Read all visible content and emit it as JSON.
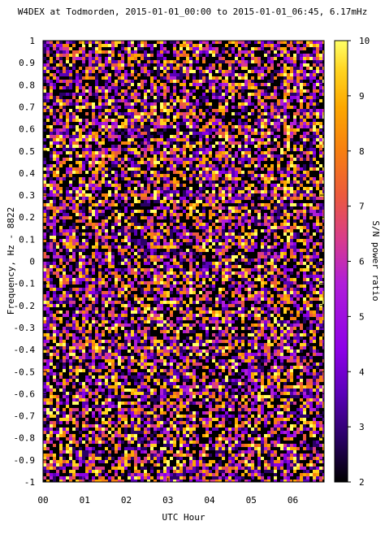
{
  "chart_data": {
    "type": "heatmap",
    "title": "W4DEX at Todmorden, 2015-01-01_00:00 to 2015-01-01_06:45, 6.17mHz",
    "xlabel": "UTC Hour",
    "ylabel": "Frequency, Hz - 8822",
    "colorbar_label": "S/N power ratio",
    "xlim": [
      0,
      6.75
    ],
    "ylim": [
      -1,
      1
    ],
    "clim": [
      2,
      10
    ],
    "x_ticks": [
      0,
      1,
      2,
      3,
      4,
      5,
      6
    ],
    "x_tick_labels": [
      "00",
      "01",
      "02",
      "03",
      "04",
      "05",
      "06"
    ],
    "y_ticks": [
      1,
      0.9,
      0.8,
      0.7,
      0.6,
      0.5,
      0.4,
      0.3,
      0.2,
      0.1,
      0,
      -0.1,
      -0.2,
      -0.3,
      -0.4,
      -0.5,
      -0.6,
      -0.7,
      -0.8,
      -0.9,
      -1
    ],
    "y_tick_labels": [
      "1",
      "0.9",
      "0.8",
      "0.7",
      "0.6",
      "0.5",
      "0.4",
      "0.3",
      "0.2",
      "0.1",
      "0",
      "-0.1",
      "-0.2",
      "-0.3",
      "-0.4",
      "-0.5",
      "-0.6",
      "-0.7",
      "-0.8",
      "-0.9",
      "-1"
    ],
    "colorbar_ticks": [
      10,
      9,
      8,
      7,
      6,
      5,
      4,
      3,
      2
    ],
    "colorbar_tick_labels": [
      "10",
      "9",
      "8",
      "7",
      "6",
      "5",
      "4",
      "3",
      "2"
    ],
    "colormap": [
      "#000000",
      "#2a0066",
      "#5a00b8",
      "#8c00e6",
      "#b01ed8",
      "#d83c8c",
      "#ec5a3c",
      "#f77f10",
      "#fca800",
      "#ffd21e",
      "#ffff66"
    ],
    "grid": false,
    "legend": "colorbar-right"
  }
}
